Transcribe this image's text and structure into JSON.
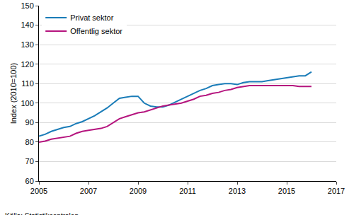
{
  "chart_data": {
    "type": "line",
    "y_label": "Index (2010=100)",
    "source": "Källa: Statistikcentralen",
    "x": [
      2005,
      2005.25,
      2005.5,
      2005.75,
      2006,
      2006.25,
      2006.5,
      2006.75,
      2007,
      2007.25,
      2007.5,
      2007.75,
      2008,
      2008.25,
      2008.5,
      2008.75,
      2009,
      2009.25,
      2009.5,
      2009.75,
      2010,
      2010.25,
      2010.5,
      2010.75,
      2011,
      2011.25,
      2011.5,
      2011.75,
      2012,
      2012.25,
      2012.5,
      2012.75,
      2013,
      2013.25,
      2013.5,
      2013.75,
      2014,
      2014.25,
      2014.5,
      2014.75,
      2015,
      2015.25,
      2015.5,
      2015.75,
      2016
    ],
    "series": [
      {
        "name": "Privat sektor",
        "color": "#1a7cb8",
        "values": [
          83,
          84,
          85.5,
          86.5,
          87.5,
          88,
          89.5,
          90.5,
          92,
          93.5,
          95.5,
          97.5,
          100,
          102.5,
          103,
          103.5,
          103.5,
          100,
          98.5,
          98,
          98,
          99,
          100.5,
          102,
          103.5,
          105,
          106.5,
          107.5,
          109,
          109.5,
          110,
          110,
          109.5,
          110.5,
          111,
          111,
          111,
          111.5,
          112,
          112.5,
          113,
          113.5,
          114,
          114,
          116
        ]
      },
      {
        "name": "Offentlig sektor",
        "color": "#b5147e",
        "values": [
          80,
          80.5,
          81.5,
          82,
          82.5,
          83,
          84.5,
          85.5,
          86,
          86.5,
          87,
          88,
          90,
          92,
          93,
          94,
          95,
          95.5,
          96.5,
          97.5,
          98.5,
          99,
          99.5,
          100,
          101,
          102,
          103.5,
          104,
          105,
          105.5,
          106.5,
          107,
          108,
          108.5,
          109,
          109,
          109,
          109,
          109,
          109,
          109,
          109,
          108.5,
          108.5,
          108.5
        ]
      }
    ],
    "xlim": [
      2005,
      2017
    ],
    "xticks": [
      2005,
      2007,
      2009,
      2011,
      2013,
      2015,
      2017
    ],
    "ylim": [
      60,
      150
    ],
    "yticks": [
      60,
      70,
      80,
      90,
      100,
      110,
      120,
      130,
      140,
      150
    ],
    "grid": true,
    "legend": "upper left"
  }
}
